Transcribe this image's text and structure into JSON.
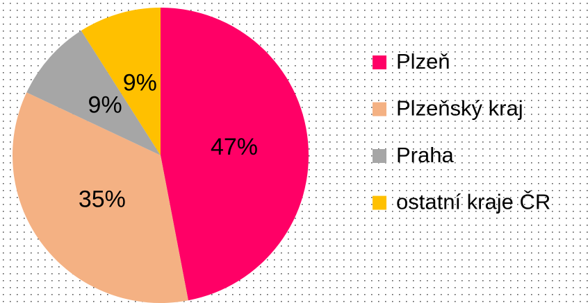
{
  "chart_data": {
    "type": "pie",
    "categories": [
      "Plzeň",
      "Plzeňský kraj",
      "Praha",
      "ostatní kraje ČR"
    ],
    "values": [
      47,
      35,
      9,
      9
    ],
    "value_labels": [
      "47%",
      "35%",
      "9%",
      "9%"
    ],
    "colors": [
      "#ff0066",
      "#f4b183",
      "#a6a6a6",
      "#ffc000"
    ],
    "legend": "right"
  }
}
